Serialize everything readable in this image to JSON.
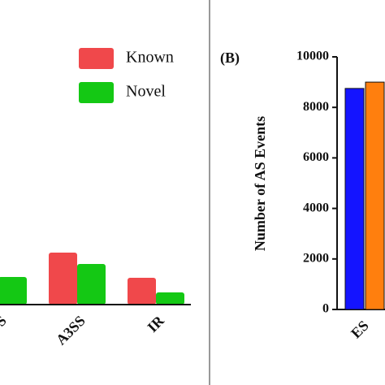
{
  "chart_data": [
    {
      "type": "bar",
      "categories": [
        "S",
        "A3SS",
        "IR"
      ],
      "series": [
        {
          "name": "Known",
          "color": "#f0484b",
          "values": [
            null,
            64,
            33
          ]
        },
        {
          "name": "Novel",
          "color": "#14c814",
          "values": [
            34,
            50,
            15
          ]
        }
      ],
      "ylim": [
        0,
        300
      ]
    },
    {
      "type": "bar",
      "panel_label": "(B)",
      "y_label": "Number of AS Events",
      "categories": [
        "ES",
        null
      ],
      "values": [
        8750,
        9000
      ],
      "colors": [
        "#1414ff",
        "#ff7f0e"
      ],
      "ylim": [
        0,
        10000
      ],
      "yticks": [
        0,
        2000,
        4000,
        6000,
        8000,
        10000
      ]
    }
  ]
}
